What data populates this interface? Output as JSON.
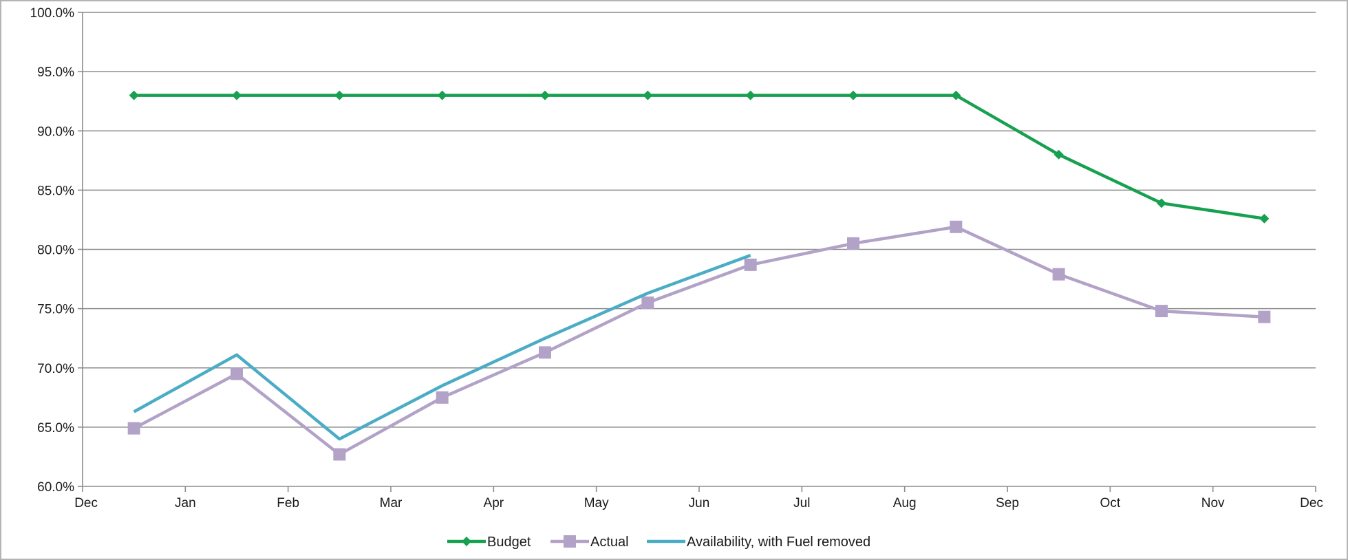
{
  "chart_data": {
    "type": "line",
    "x_tick_labels": [
      "Dec",
      "Jan",
      "Feb",
      "Mar",
      "Apr",
      "May",
      "Jun",
      "Jul",
      "Aug",
      "Sep",
      "Oct",
      "Nov",
      "Dec"
    ],
    "y_tick_labels": [
      "60.0%",
      "65.0%",
      "70.0%",
      "75.0%",
      "80.0%",
      "85.0%",
      "90.0%",
      "95.0%",
      "100.0%"
    ],
    "ylim": [
      60,
      100
    ],
    "y_unit": "%",
    "grid": "horizontal",
    "legend_position": "bottom",
    "x_axis_note": "monthly axis from Dec to Dec; points plotted at mid-month",
    "series": [
      {
        "name": "Budget",
        "color": "#17a04f",
        "marker": "diamond",
        "x": [
          "Dec (mid)",
          "Jan (mid)",
          "Feb (mid)",
          "Mar (mid)",
          "Apr (mid)",
          "May (mid)",
          "Jun (mid)",
          "Jul (mid)",
          "Aug (mid)",
          "Sep (mid)",
          "Oct (mid)",
          "Nov (mid)"
        ],
        "values": [
          93.0,
          93.0,
          93.0,
          93.0,
          93.0,
          93.0,
          93.0,
          93.0,
          93.0,
          88.0,
          83.9,
          82.6
        ]
      },
      {
        "name": "Actual",
        "color": "#b3a2c7",
        "marker": "square",
        "x": [
          "Dec (mid)",
          "Jan (mid)",
          "Feb (mid)",
          "Mar (mid)",
          "Apr (mid)",
          "May (mid)",
          "Jun (mid)",
          "Jul (mid)",
          "Aug (mid)",
          "Sep (mid)",
          "Oct (mid)",
          "Nov (mid)"
        ],
        "values": [
          64.9,
          69.5,
          62.7,
          67.5,
          71.3,
          75.5,
          78.7,
          80.5,
          81.9,
          77.9,
          74.8,
          74.3
        ]
      },
      {
        "name": "Availability, with Fuel removed",
        "color": "#4bacc6",
        "marker": "none",
        "x": [
          "Dec (mid)",
          "Jan (mid)",
          "Feb (mid)",
          "Mar (mid)",
          "Apr (mid)",
          "May (mid)",
          "Jun (mid)"
        ],
        "values": [
          66.3,
          71.1,
          64.0,
          68.5,
          72.5,
          76.3,
          79.5
        ]
      }
    ]
  }
}
